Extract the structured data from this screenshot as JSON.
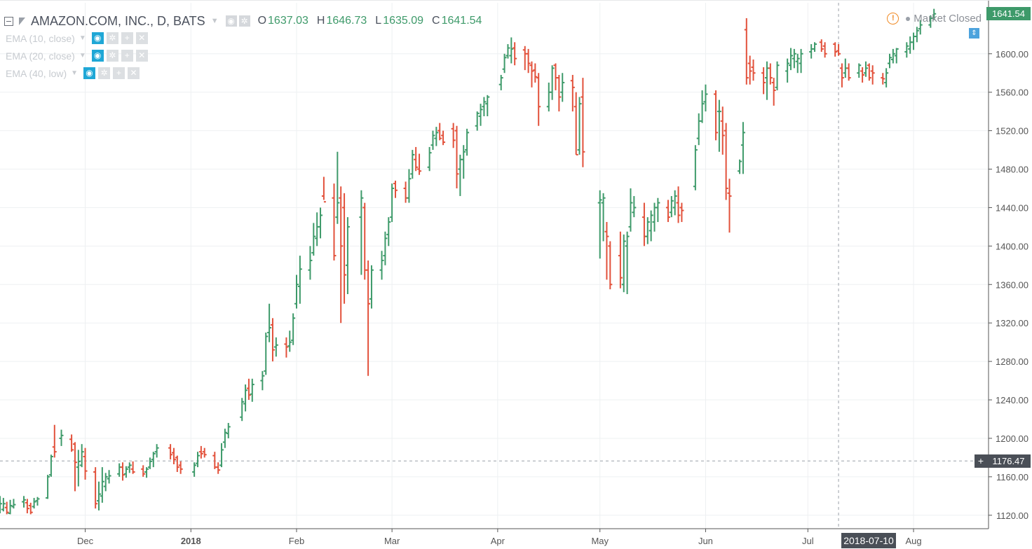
{
  "header": {
    "symbol": "AMAZON.COM, INC., D, BATS",
    "ohlc": [
      {
        "key": "O",
        "value": "1637.03"
      },
      {
        "key": "H",
        "value": "1646.73"
      },
      {
        "key": "L",
        "value": "1635.09"
      },
      {
        "key": "C",
        "value": "1641.54"
      }
    ]
  },
  "indicators": [
    {
      "label": "EMA (10, close)"
    },
    {
      "label": "EMA (20, close)"
    },
    {
      "label": "EMA (40, low)"
    }
  ],
  "status": {
    "text": "Market Closed",
    "warning_color": "#f08a24"
  },
  "price_scale": {
    "ticks": [
      "1600.00",
      "1560.00",
      "1520.00",
      "1480.00",
      "1440.00",
      "1400.00",
      "1360.00",
      "1320.00",
      "1280.00",
      "1240.00",
      "1200.00",
      "1160.00",
      "1120.00"
    ],
    "last_price_label": "1641.54",
    "last_price_color": "#3e9a6a",
    "crosshair_label": "1176.47"
  },
  "time_scale": {
    "ticks": [
      "Dec",
      "2018",
      "Feb",
      "Mar",
      "Apr",
      "May",
      "Jun",
      "Jul",
      "Aug"
    ],
    "crosshair_label": "2018-07-10"
  },
  "colors": {
    "up": "#3e9a6a",
    "down": "#e2513b",
    "grid": "#eef0f2",
    "axis": "#555555",
    "text": "#555555"
  },
  "chart_data": {
    "type": "ohlc-bar",
    "title": "AMAZON.COM, INC., D, BATS",
    "ylim": [
      1106,
      1653
    ],
    "xlim": [
      "2017-11-06",
      "2018-08-23"
    ],
    "grid": true,
    "x_ticks": [
      "2017-12-01",
      "2018-01-01",
      "2018-02-01",
      "2018-03-01",
      "2018-04-01",
      "2018-05-01",
      "2018-06-01",
      "2018-07-01",
      "2018-08-01"
    ],
    "y_ticks": [
      1120,
      1160,
      1200,
      1240,
      1280,
      1320,
      1360,
      1400,
      1440,
      1480,
      1520,
      1560,
      1600
    ],
    "crosshair": {
      "date": "2018-07-10",
      "price": 1176.47
    },
    "last": {
      "open": 1637.03,
      "high": 1646.73,
      "low": 1635.09,
      "close": 1641.54
    },
    "bars": [
      [
        "2017-11-06",
        1122,
        1140,
        1122,
        1132
      ],
      [
        "2017-11-07",
        1126,
        1138,
        1124,
        1132
      ],
      [
        "2017-11-08",
        1128,
        1134,
        1121,
        1123
      ],
      [
        "2017-11-09",
        1122,
        1136,
        1121,
        1130
      ],
      [
        "2017-11-10",
        1129,
        1137,
        1127,
        1131
      ],
      [
        "2017-11-13",
        1134,
        1140,
        1128,
        1136
      ],
      [
        "2017-11-14",
        1133,
        1137,
        1122,
        1127
      ],
      [
        "2017-11-15",
        1130,
        1133,
        1121,
        1123
      ],
      [
        "2017-11-16",
        1129,
        1138,
        1127,
        1134
      ],
      [
        "2017-11-17",
        1135,
        1139,
        1130,
        1137
      ],
      [
        "2017-11-20",
        1138,
        1162,
        1137,
        1160
      ],
      [
        "2017-11-21",
        1162,
        1183,
        1160,
        1181
      ],
      [
        "2017-11-22",
        1191,
        1214,
        1180,
        1186
      ],
      [
        "2017-11-24",
        1200,
        1209,
        1192,
        1203
      ],
      [
        "2017-11-27",
        1199,
        1204,
        1186,
        1188
      ],
      [
        "2017-11-28",
        1194,
        1196,
        1145,
        1175
      ],
      [
        "2017-11-29",
        1170,
        1188,
        1150,
        1176
      ],
      [
        "2017-11-30",
        1172,
        1194,
        1170,
        1186
      ],
      [
        "2017-12-01",
        1181,
        1190,
        1157,
        1166
      ],
      [
        "2017-12-04",
        1165,
        1170,
        1127,
        1132
      ],
      [
        "2017-12-05",
        1135,
        1155,
        1125,
        1142
      ],
      [
        "2017-12-06",
        1140,
        1170,
        1133,
        1155
      ],
      [
        "2017-12-07",
        1150,
        1164,
        1145,
        1160
      ],
      [
        "2017-12-08",
        1158,
        1167,
        1153,
        1161
      ],
      [
        "2017-12-11",
        1163,
        1174,
        1160,
        1170
      ],
      [
        "2017-12-12",
        1170,
        1175,
        1156,
        1162
      ],
      [
        "2017-12-13",
        1163,
        1171,
        1159,
        1168
      ],
      [
        "2017-12-14",
        1170,
        1175,
        1164,
        1172
      ],
      [
        "2017-12-15",
        1168,
        1176,
        1163,
        1165
      ],
      [
        "2017-12-18",
        1168,
        1172,
        1160,
        1163
      ],
      [
        "2017-12-19",
        1165,
        1170,
        1159,
        1168
      ],
      [
        "2017-12-20",
        1170,
        1180,
        1168,
        1176
      ],
      [
        "2017-12-21",
        1178,
        1186,
        1170,
        1184
      ],
      [
        "2017-12-22",
        1186,
        1194,
        1180,
        1190
      ],
      [
        "2017-12-26",
        1190,
        1194,
        1178,
        1183
      ],
      [
        "2017-12-27",
        1185,
        1190,
        1173,
        1178
      ],
      [
        "2017-12-28",
        1180,
        1182,
        1165,
        1170
      ],
      [
        "2017-12-29",
        1172,
        1176,
        1163,
        1168
      ],
      [
        "2018-01-02",
        1165,
        1175,
        1160,
        1172
      ],
      [
        "2018-01-03",
        1174,
        1186,
        1170,
        1182
      ],
      [
        "2018-01-04",
        1186,
        1192,
        1179,
        1184
      ],
      [
        "2018-01-05",
        1186,
        1190,
        1180,
        1183
      ],
      [
        "2018-01-08",
        1182,
        1186,
        1168,
        1170
      ],
      [
        "2018-01-09",
        1170,
        1175,
        1163,
        1167
      ],
      [
        "2018-01-10",
        1172,
        1195,
        1170,
        1188
      ],
      [
        "2018-01-11",
        1196,
        1210,
        1190,
        1206
      ],
      [
        "2018-01-12",
        1205,
        1216,
        1200,
        1212
      ],
      [
        "2018-01-16",
        1222,
        1242,
        1218,
        1238
      ],
      [
        "2018-01-17",
        1236,
        1256,
        1228,
        1250
      ],
      [
        "2018-01-18",
        1252,
        1262,
        1240,
        1245
      ],
      [
        "2018-01-19",
        1246,
        1262,
        1238,
        1256
      ],
      [
        "2018-01-22",
        1260,
        1270,
        1250,
        1265
      ],
      [
        "2018-01-23",
        1270,
        1310,
        1266,
        1306
      ],
      [
        "2018-01-24",
        1310,
        1340,
        1300,
        1315
      ],
      [
        "2018-01-25",
        1318,
        1325,
        1280,
        1292
      ],
      [
        "2018-01-26",
        1295,
        1305,
        1285,
        1297
      ],
      [
        "2018-01-29",
        1298,
        1305,
        1284,
        1295
      ],
      [
        "2018-01-30",
        1296,
        1312,
        1290,
        1300
      ],
      [
        "2018-01-31",
        1302,
        1330,
        1297,
        1325
      ],
      [
        "2018-02-01",
        1340,
        1370,
        1335,
        1360
      ],
      [
        "2018-02-02",
        1358,
        1390,
        1340,
        1376
      ],
      [
        "2018-02-05",
        1375,
        1400,
        1365,
        1385
      ],
      [
        "2018-02-06",
        1393,
        1424,
        1390,
        1410
      ],
      [
        "2018-02-07",
        1408,
        1435,
        1400,
        1420
      ],
      [
        "2018-02-08",
        1420,
        1440,
        1408,
        1432
      ],
      [
        "2018-02-09",
        1452,
        1472,
        1448,
        1446
      ],
      [
        "2018-02-12",
        1450,
        1465,
        1385,
        1390
      ],
      [
        "2018-02-13",
        1430,
        1498,
        1423,
        1445
      ],
      [
        "2018-02-14",
        1450,
        1462,
        1320,
        1400
      ],
      [
        "2018-02-15",
        1440,
        1455,
        1340,
        1370
      ],
      [
        "2018-02-16",
        1380,
        1430,
        1350,
        1420
      ],
      [
        "2018-02-20",
        1430,
        1458,
        1370,
        1450
      ],
      [
        "2018-02-21",
        1440,
        1445,
        1365,
        1375
      ],
      [
        "2018-02-22",
        1375,
        1385,
        1265,
        1340
      ],
      [
        "2018-02-23",
        1345,
        1380,
        1335,
        1375
      ],
      [
        "2018-02-26",
        1375,
        1395,
        1365,
        1385
      ],
      [
        "2018-02-27",
        1390,
        1415,
        1380,
        1408
      ],
      [
        "2018-02-28",
        1412,
        1430,
        1400,
        1425
      ],
      [
        "2018-03-01",
        1430,
        1465,
        1425,
        1460
      ],
      [
        "2018-03-02",
        1465,
        1468,
        1450,
        1458
      ],
      [
        "2018-03-05",
        1460,
        1467,
        1445,
        1450
      ],
      [
        "2018-03-06",
        1450,
        1480,
        1445,
        1470
      ],
      [
        "2018-03-07",
        1475,
        1500,
        1470,
        1495
      ],
      [
        "2018-03-08",
        1490,
        1503,
        1478,
        1482
      ],
      [
        "2018-03-09",
        1480,
        1496,
        1474,
        1478
      ],
      [
        "2018-03-12",
        1482,
        1503,
        1478,
        1497
      ],
      [
        "2018-03-13",
        1505,
        1520,
        1500,
        1515
      ],
      [
        "2018-03-14",
        1512,
        1524,
        1504,
        1518
      ],
      [
        "2018-03-15",
        1520,
        1528,
        1510,
        1512
      ],
      [
        "2018-03-16",
        1515,
        1520,
        1505,
        1508
      ],
      [
        "2018-03-19",
        1522,
        1528,
        1502,
        1510
      ],
      [
        "2018-03-20",
        1520,
        1525,
        1460,
        1475
      ],
      [
        "2018-03-21",
        1480,
        1495,
        1452,
        1490
      ],
      [
        "2018-03-22",
        1490,
        1505,
        1470,
        1498
      ],
      [
        "2018-03-23",
        1500,
        1522,
        1494,
        1518
      ],
      [
        "2018-03-26",
        1525,
        1540,
        1520,
        1538
      ],
      [
        "2018-03-27",
        1535,
        1548,
        1525,
        1542
      ],
      [
        "2018-03-28",
        1545,
        1555,
        1535,
        1550
      ],
      [
        "2018-03-29",
        1548,
        1557,
        1535,
        1555
      ],
      [
        "2018-04-02",
        1568,
        1578,
        1562,
        1575
      ],
      [
        "2018-04-03",
        1584,
        1600,
        1580,
        1596
      ],
      [
        "2018-04-04",
        1598,
        1610,
        1595,
        1606
      ],
      [
        "2018-04-05",
        1598,
        1617,
        1590,
        1605
      ],
      [
        "2018-04-06",
        1606,
        1612,
        1588,
        1595
      ],
      [
        "2018-04-09",
        1604,
        1608,
        1583,
        1600
      ],
      [
        "2018-04-10",
        1600,
        1605,
        1580,
        1590
      ],
      [
        "2018-04-11",
        1588,
        1592,
        1565,
        1582
      ],
      [
        "2018-04-12",
        1583,
        1590,
        1570,
        1576
      ],
      [
        "2018-04-13",
        1575,
        1580,
        1525,
        1545
      ],
      [
        "2018-04-16",
        1545,
        1570,
        1540,
        1560
      ],
      [
        "2018-04-17",
        1560,
        1588,
        1552,
        1585
      ],
      [
        "2018-04-18",
        1588,
        1590,
        1562,
        1575
      ],
      [
        "2018-04-19",
        1575,
        1578,
        1540,
        1555
      ],
      [
        "2018-04-20",
        1560,
        1580,
        1550,
        1570
      ],
      [
        "2018-04-23",
        1572,
        1578,
        1540,
        1565
      ],
      [
        "2018-04-24",
        1545,
        1560,
        1495,
        1495
      ],
      [
        "2018-04-25",
        1500,
        1555,
        1495,
        1548
      ],
      [
        "2018-04-26",
        1555,
        1575,
        1482,
        1498
      ],
      [
        "2018-05-01",
        1445,
        1458,
        1387,
        1448
      ],
      [
        "2018-05-02",
        1445,
        1455,
        1405,
        1450
      ],
      [
        "2018-05-03",
        1415,
        1425,
        1365,
        1410
      ],
      [
        "2018-05-04",
        1400,
        1405,
        1355,
        1360
      ],
      [
        "2018-05-07",
        1390,
        1415,
        1356,
        1367
      ],
      [
        "2018-05-08",
        1360,
        1412,
        1352,
        1405
      ],
      [
        "2018-05-09",
        1400,
        1415,
        1350,
        1410
      ],
      [
        "2018-05-10",
        1420,
        1460,
        1415,
        1445
      ],
      [
        "2018-05-11",
        1435,
        1452,
        1430,
        1440
      ],
      [
        "2018-05-14",
        1430,
        1445,
        1400,
        1410
      ],
      [
        "2018-05-15",
        1410,
        1430,
        1402,
        1425
      ],
      [
        "2018-05-16",
        1416,
        1437,
        1405,
        1432
      ],
      [
        "2018-05-17",
        1425,
        1445,
        1415,
        1440
      ],
      [
        "2018-05-18",
        1440,
        1450,
        1425,
        1445
      ],
      [
        "2018-05-21",
        1440,
        1448,
        1425,
        1430
      ],
      [
        "2018-05-22",
        1435,
        1452,
        1430,
        1447
      ],
      [
        "2018-05-23",
        1440,
        1458,
        1432,
        1452
      ],
      [
        "2018-05-24",
        1445,
        1462,
        1424,
        1432
      ],
      [
        "2018-05-25",
        1440,
        1445,
        1425,
        1437
      ],
      [
        "2018-05-29",
        1462,
        1505,
        1458,
        1500
      ],
      [
        "2018-05-30",
        1512,
        1538,
        1505,
        1530
      ],
      [
        "2018-05-31",
        1530,
        1562,
        1528,
        1548
      ],
      [
        "2018-06-01",
        1550,
        1568,
        1540,
        1558
      ],
      [
        "2018-06-04",
        1558,
        1562,
        1510,
        1518
      ],
      [
        "2018-06-05",
        1540,
        1552,
        1498,
        1540
      ],
      [
        "2018-06-06",
        1530,
        1545,
        1495,
        1515
      ],
      [
        "2018-06-07",
        1520,
        1528,
        1448,
        1460
      ],
      [
        "2018-06-08",
        1455,
        1470,
        1414,
        1452
      ],
      [
        "2018-06-11",
        1478,
        1490,
        1475,
        1488
      ],
      [
        "2018-06-12",
        1505,
        1529,
        1475,
        1518
      ],
      [
        "2018-06-13",
        1625,
        1637,
        1568,
        1575
      ],
      [
        "2018-06-14",
        1590,
        1598,
        1568,
        1582
      ],
      [
        "2018-06-15",
        1586,
        1594,
        1572,
        1580
      ],
      [
        "2018-06-18",
        1580,
        1586,
        1558,
        1570
      ],
      [
        "2018-06-19",
        1575,
        1592,
        1552,
        1585
      ],
      [
        "2018-06-20",
        1585,
        1590,
        1568,
        1575
      ],
      [
        "2018-06-21",
        1570,
        1575,
        1546,
        1562
      ],
      [
        "2018-06-22",
        1565,
        1592,
        1562,
        1588
      ],
      [
        "2018-06-25",
        1582,
        1595,
        1570,
        1590
      ],
      [
        "2018-06-26",
        1588,
        1606,
        1583,
        1598
      ],
      [
        "2018-06-27",
        1595,
        1605,
        1585,
        1600
      ],
      [
        "2018-06-28",
        1592,
        1600,
        1580,
        1595
      ],
      [
        "2018-06-29",
        1590,
        1605,
        1580,
        1600
      ],
      [
        "2018-07-02",
        1602,
        1610,
        1595,
        1605
      ],
      [
        "2018-07-03",
        1605,
        1612,
        1602,
        1610
      ],
      [
        "2018-07-05",
        1612,
        1615,
        1602,
        1605
      ],
      [
        "2018-07-06",
        1608,
        1612,
        1596,
        1600
      ],
      [
        "2018-07-09",
        1610,
        1612,
        1597,
        1602
      ],
      [
        "2018-07-10",
        1603,
        1610,
        1598,
        1600
      ],
      [
        "2018-07-11",
        1585,
        1590,
        1565,
        1575
      ],
      [
        "2018-07-12",
        1580,
        1595,
        1575,
        1585
      ],
      [
        "2018-07-13",
        1585,
        1590,
        1572,
        1575
      ],
      [
        "2018-07-16",
        1580,
        1590,
        1575,
        1588
      ],
      [
        "2018-07-17",
        1582,
        1586,
        1570,
        1578
      ],
      [
        "2018-07-18",
        1580,
        1592,
        1576,
        1585
      ],
      [
        "2018-07-19",
        1588,
        1590,
        1572,
        1575
      ],
      [
        "2018-07-20",
        1582,
        1588,
        1568,
        1580
      ],
      [
        "2018-07-23",
        1575,
        1580,
        1568,
        1574
      ],
      [
        "2018-07-24",
        1570,
        1585,
        1565,
        1580
      ],
      [
        "2018-07-25",
        1590,
        1600,
        1585,
        1596
      ],
      [
        "2018-07-26",
        1594,
        1605,
        1590,
        1600
      ],
      [
        "2018-07-27",
        1598,
        1606,
        1590,
        1605
      ],
      [
        "2018-07-30",
        1602,
        1612,
        1596,
        1608
      ],
      [
        "2018-07-31",
        1605,
        1618,
        1600,
        1612
      ],
      [
        "2018-08-01",
        1612,
        1622,
        1604,
        1618
      ],
      [
        "2018-08-02",
        1618,
        1628,
        1612,
        1624
      ],
      [
        "2018-08-03",
        1626,
        1635,
        1620,
        1630
      ],
      [
        "2018-08-06",
        1630,
        1640,
        1627,
        1637
      ],
      [
        "2018-08-07",
        1637.03,
        1646.73,
        1635.09,
        1641.54
      ]
    ]
  }
}
